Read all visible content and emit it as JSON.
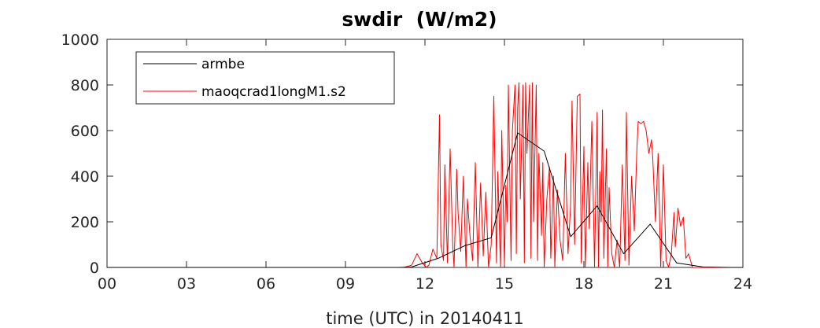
{
  "chart_data": {
    "type": "line",
    "title": "swdir  (W/m2)",
    "xlabel": "time (UTC) in 20140411",
    "ylabel": "",
    "xlim": [
      0,
      24
    ],
    "ylim": [
      0,
      1000
    ],
    "xticks": [
      0,
      3,
      6,
      9,
      12,
      15,
      18,
      21,
      24
    ],
    "xtick_labels": [
      "00",
      "03",
      "06",
      "09",
      "12",
      "15",
      "18",
      "21",
      "24"
    ],
    "yticks": [
      0,
      200,
      400,
      600,
      800,
      1000
    ],
    "ytick_labels": [
      "0",
      "200",
      "400",
      "600",
      "800",
      "1000"
    ],
    "grid": false,
    "legend_position": "top-left",
    "series": [
      {
        "name": "armbe",
        "color": "#000000",
        "x": [
          0,
          1,
          2,
          3,
          4,
          5,
          6,
          7,
          8,
          9,
          10,
          11,
          11.5,
          12.5,
          13.5,
          14.5,
          15.5,
          16.5,
          17.5,
          18.5,
          19.5,
          20.5,
          21.5,
          22.5,
          23.5,
          24
        ],
        "y": [
          0,
          0,
          0,
          0,
          0,
          0,
          0,
          0,
          0,
          0,
          0,
          0,
          2,
          40,
          95,
          130,
          590,
          510,
          135,
          270,
          60,
          190,
          20,
          2,
          0,
          0
        ]
      },
      {
        "name": "maoqcrad1longM1.s2",
        "color": "#ff0000",
        "x": [
          0,
          11.2,
          11.5,
          11.7,
          11.9,
          12.05,
          12.15,
          12.3,
          12.45,
          12.55,
          12.6,
          12.7,
          12.75,
          12.85,
          12.95,
          13.05,
          13.1,
          13.2,
          13.25,
          13.35,
          13.45,
          13.55,
          13.6,
          13.7,
          13.8,
          13.9,
          14.0,
          14.1,
          14.2,
          14.3,
          14.4,
          14.5,
          14.6,
          14.7,
          14.75,
          14.85,
          14.9,
          15.0,
          15.05,
          15.1,
          15.15,
          15.25,
          15.3,
          15.4,
          15.45,
          15.5,
          15.55,
          15.6,
          15.7,
          15.75,
          15.8,
          15.85,
          15.95,
          16.0,
          16.05,
          16.1,
          16.2,
          16.25,
          16.3,
          16.4,
          16.45,
          16.5,
          16.6,
          16.7,
          16.75,
          16.85,
          16.9,
          17.0,
          17.1,
          17.2,
          17.3,
          17.4,
          17.5,
          17.55,
          17.65,
          17.75,
          17.85,
          17.9,
          18.0,
          18.05,
          18.15,
          18.2,
          18.3,
          18.4,
          18.5,
          18.55,
          18.6,
          18.65,
          18.7,
          18.75,
          18.85,
          18.9,
          18.95,
          19.05,
          19.15,
          19.25,
          19.35,
          19.45,
          19.55,
          19.6,
          19.7,
          19.8,
          19.9,
          20.0,
          20.05,
          20.15,
          20.25,
          20.35,
          20.45,
          20.55,
          20.6,
          20.7,
          20.8,
          20.9,
          21.0,
          21.1,
          21.2,
          21.3,
          21.4,
          21.45,
          21.55,
          21.65,
          21.75,
          21.85,
          21.95,
          22.1,
          24
        ],
        "y": [
          0,
          0,
          10,
          60,
          20,
          0,
          10,
          80,
          40,
          670,
          100,
          30,
          450,
          20,
          520,
          90,
          0,
          430,
          240,
          70,
          400,
          0,
          300,
          140,
          30,
          460,
          0,
          370,
          50,
          330,
          0,
          100,
          750,
          20,
          420,
          0,
          600,
          10,
          360,
          200,
          800,
          30,
          600,
          800,
          60,
          700,
          810,
          300,
          800,
          20,
          810,
          500,
          800,
          40,
          810,
          200,
          800,
          30,
          500,
          140,
          460,
          0,
          300,
          440,
          40,
          400,
          0,
          340,
          120,
          30,
          500,
          60,
          280,
          730,
          100,
          750,
          760,
          20,
          530,
          0,
          460,
          170,
          640,
          0,
          680,
          0,
          420,
          200,
          690,
          40,
          520,
          0,
          350,
          60,
          0,
          120,
          0,
          450,
          30,
          680,
          10,
          400,
          160,
          520,
          640,
          630,
          640,
          600,
          500,
          560,
          480,
          200,
          500,
          0,
          450,
          30,
          0,
          60,
          240,
          90,
          260,
          180,
          220,
          40,
          60,
          0,
          0
        ]
      }
    ]
  }
}
